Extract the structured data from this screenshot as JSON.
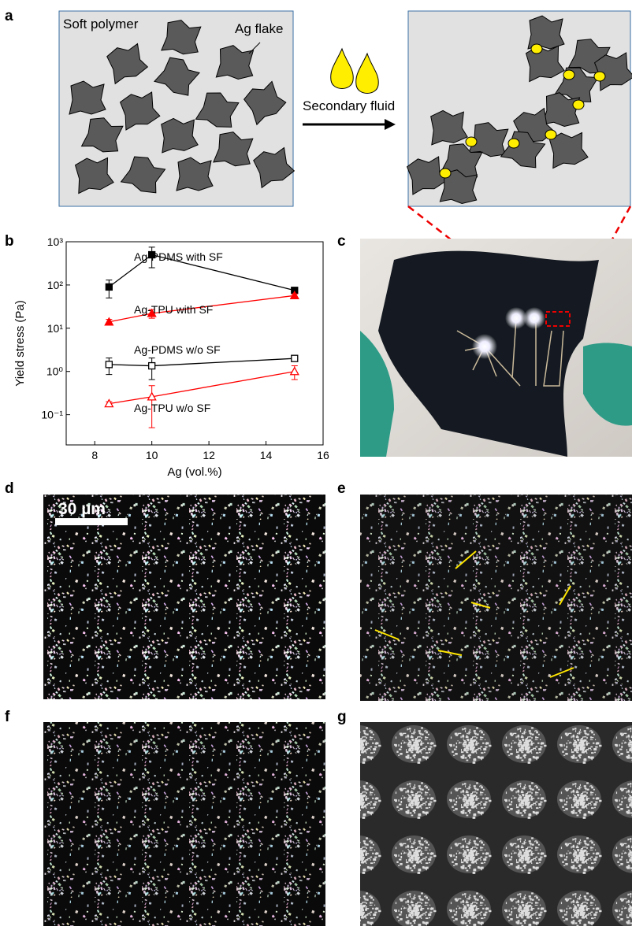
{
  "panel_labels": [
    "a",
    "b",
    "c",
    "d",
    "e",
    "f",
    "g"
  ],
  "schematic": {
    "left_label": "Soft polymer",
    "flake_label": "Ag flake",
    "arrow_label": "Secondary fluid"
  },
  "scale_bar": "30 µm",
  "chart_data": {
    "type": "line",
    "x_label": "Ag (vol.%)",
    "y_label": "Yield stress (Pa)",
    "x": [
      8.5,
      10,
      15
    ],
    "xlim": [
      7,
      16
    ],
    "xticks": [
      8,
      10,
      12,
      14,
      16
    ],
    "ylim": [
      0.02,
      1000
    ],
    "log_y": true,
    "yticks": [
      {
        "value": 0.1,
        "label": "10⁻¹"
      },
      {
        "value": 1,
        "label": "10⁰"
      },
      {
        "value": 10,
        "label": "10¹"
      },
      {
        "value": 100,
        "label": "10²"
      },
      {
        "value": 1000,
        "label": "10³"
      }
    ],
    "series": [
      {
        "name": "Ag-PDMS with SF",
        "color": "#000000",
        "marker": "square",
        "filled": true,
        "values": [
          90,
          500,
          75
        ],
        "errors": [
          40,
          250,
          8
        ]
      },
      {
        "name": "Ag-TPU with SF",
        "color": "#ff0000",
        "marker": "triangle",
        "filled": true,
        "values": [
          14,
          22,
          57
        ],
        "errors": [
          2,
          5,
          5
        ]
      },
      {
        "name": "Ag-PDMS w/o SF",
        "color": "#000000",
        "marker": "square",
        "filled": false,
        "values": [
          1.45,
          1.35,
          2.0
        ],
        "errors": [
          0.6,
          0.7,
          0.1
        ]
      },
      {
        "name": "Ag-TPU w/o SF",
        "color": "#ff0000",
        "marker": "triangle",
        "filled": false,
        "values": [
          0.18,
          0.26,
          1.0
        ],
        "errors": [
          0.02,
          0.21,
          0.35
        ]
      }
    ]
  }
}
